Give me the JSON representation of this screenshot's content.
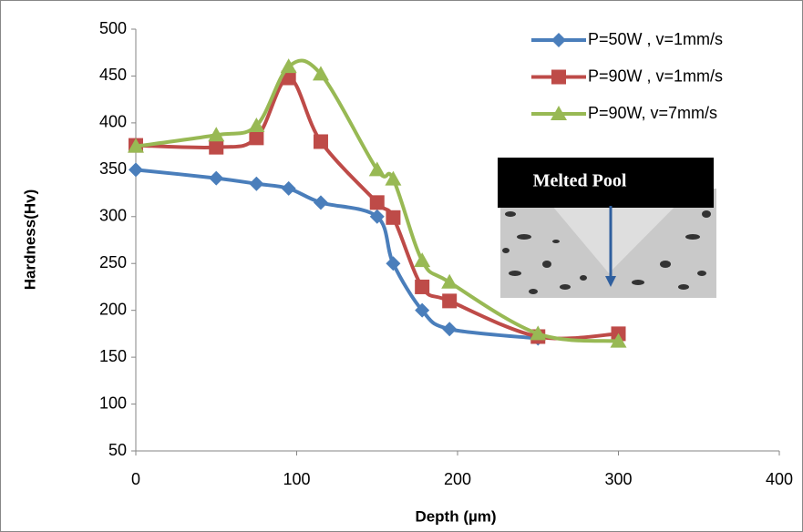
{
  "chart_data": {
    "type": "line",
    "x_label": "Depth (µm)",
    "y_label": "Hardness(Hv)",
    "annotation": "Melted Pool",
    "x": [
      0,
      50,
      75,
      95,
      115,
      150,
      160,
      178,
      195,
      250,
      300
    ],
    "series": [
      {
        "name": "P=50W , v=1mm/s",
        "color": "#4a7ebb",
        "marker": "diamond",
        "values": [
          350,
          341,
          335,
          330,
          315,
          300,
          250,
          200,
          180,
          170,
          null
        ]
      },
      {
        "name": "P=90W , v=1mm/s",
        "color": "#be4b48",
        "marker": "square",
        "values": [
          376,
          374,
          384,
          448,
          380,
          315,
          299,
          225,
          210,
          172,
          175
        ]
      },
      {
        "name": "P=90W, v=7mm/s",
        "color": "#98b954",
        "marker": "triangle",
        "values": [
          375,
          387,
          397,
          460,
          452,
          350,
          340,
          253,
          230,
          175,
          167
        ]
      }
    ],
    "xlim": [
      0,
      400
    ],
    "xticks": [
      0,
      100,
      200,
      300,
      400
    ],
    "ylim": [
      50,
      500
    ],
    "yticks": [
      50,
      100,
      150,
      200,
      250,
      300,
      350,
      400,
      450,
      500
    ],
    "legend": "upper right",
    "smooth": true
  }
}
